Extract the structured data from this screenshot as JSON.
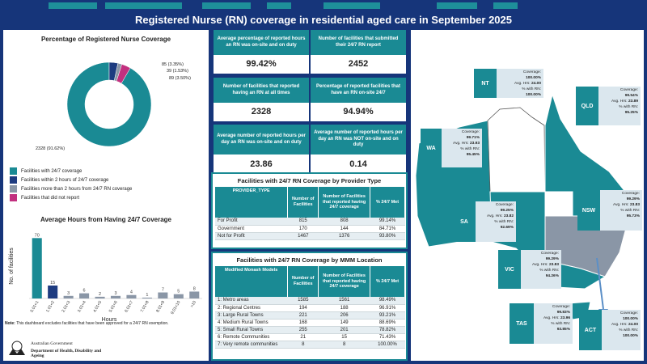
{
  "title": "Registered Nurse (RN) coverage in residential aged care in September 2025",
  "donut": {
    "title": "Percentage of Registered Nurse Coverage",
    "label_main": "2328 (91.62%)",
    "label_a": "85 (3.35%)",
    "label_b": "39 (1.53%)",
    "label_c": "89 (3.50%)",
    "legend": [
      {
        "label": "Facilities with 24/7 coverage",
        "color": "#1a8a94"
      },
      {
        "label": "Facilities within 2 hours of 24/7 coverage",
        "color": "#1d3b80"
      },
      {
        "label": "Facilities more than 2 hours from 24/7 RN coverage",
        "color": "#8a96a6"
      },
      {
        "label": "Facilities that did not report",
        "color": "#c2307f"
      }
    ]
  },
  "chart_data": {
    "type": "bar",
    "title": "Average Hours from Having 24/7 Coverage",
    "xlabel": "Hours",
    "ylabel": "No. of facilities",
    "categories": [
      "0.01<1",
      "1.01<2",
      "2.01<3",
      "3.01<4",
      "4.01<5",
      "5.01<6",
      "6.01<7",
      "7.01<8",
      "8.01<9",
      "9.01<10",
      ">10"
    ],
    "values": [
      70,
      15,
      3,
      6,
      2,
      3,
      4,
      1,
      7,
      5,
      8
    ],
    "ylim": [
      0,
      75
    ],
    "colors": [
      "#1a8a94",
      "#1d3b80",
      "#8a96a6",
      "#8a96a6",
      "#8a96a6",
      "#8a96a6",
      "#8a96a6",
      "#8a96a6",
      "#8a96a6",
      "#8a96a6",
      "#8a96a6"
    ]
  },
  "note": {
    "bold": "Note:",
    "text": " This dashboard excludes facilities that have been approved for a 24/7 RN exemption."
  },
  "gov": {
    "line1": "Australian Government",
    "line2": "Department of Health, Disability and Ageing"
  },
  "kpis": [
    {
      "label": "Average percentage of reported hours an RN was on-site and on duty",
      "value": "99.42%"
    },
    {
      "label": "Number of facilities that submitted their 24/7 RN report",
      "value": "2452"
    },
    {
      "label": "Number of facilities that reported having an RN at all times",
      "value": "2328"
    },
    {
      "label": "Percentage of reported facilities that have an RN on-site 24/7",
      "value": "94.94%"
    },
    {
      "label": "Average number of reported hours per day an RN was on-site and on duty",
      "value": "23.86"
    },
    {
      "label": "Average number of reported hours per day an RN was NOT on-site and on duty",
      "value": "0.14"
    }
  ],
  "provider_table": {
    "title": "Facilities with 24/7 RN Coverage by Provider Type",
    "headers": [
      "PROVIDER_TYPE",
      "Number of Facilities",
      "Number of Facilities that reported having 24/7 coverage",
      "% 24/7 Met"
    ],
    "rows": [
      [
        "For Profit",
        "815",
        "808",
        "99.14%"
      ],
      [
        "Government",
        "170",
        "144",
        "84.71%"
      ],
      [
        "Not for Profit",
        "1467",
        "1376",
        "93.80%"
      ]
    ]
  },
  "mmm_table": {
    "title": "Facilities with 24/7 RN Coverage by MMM Location",
    "headers": [
      "Modified Monash Models",
      "Number of Facilities",
      "Number of Facilities that reported having 24/7 coverage",
      "% 24/7 Met"
    ],
    "rows": [
      [
        "1: Metro areas",
        "1585",
        "1561",
        "98.49%"
      ],
      [
        "2: Regional Centres",
        "194",
        "188",
        "96.91%"
      ],
      [
        "3: Large Rural Towns",
        "221",
        "206",
        "93.21%"
      ],
      [
        "4: Medium Rural Towns",
        "168",
        "149",
        "88.69%"
      ],
      [
        "5: Small Rural Towns",
        "255",
        "201",
        "78.82%"
      ],
      [
        "6: Remote Communities",
        "21",
        "15",
        "71.43%"
      ],
      [
        "7: Very remote communities",
        "8",
        "8",
        "100.00%"
      ]
    ]
  },
  "map_labels": {
    "coverage": "Coverage:",
    "avg": "Avg. Hrs:",
    "pct": "% with RN:"
  },
  "states": {
    "NT": {
      "name": "NT",
      "coverage": "100.00%",
      "avg": "24.00",
      "pct": "100.00%"
    },
    "QLD": {
      "name": "QLD",
      "coverage": "99.54%",
      "avg": "23.89",
      "pct": "95.25%"
    },
    "WA": {
      "name": "WA",
      "coverage": "99.71%",
      "avg": "23.93",
      "pct": "95.45%"
    },
    "SA": {
      "name": "SA",
      "coverage": "99.25%",
      "avg": "23.82",
      "pct": "92.69%"
    },
    "NSW": {
      "name": "NSW",
      "coverage": "99.29%",
      "avg": "23.83",
      "pct": "95.73%"
    },
    "VIC": {
      "name": "VIC",
      "coverage": "99.29%",
      "avg": "23.83",
      "pct": "94.26%"
    },
    "TAS": {
      "name": "TAS",
      "coverage": "99.83%",
      "avg": "23.96",
      "pct": "93.85%"
    },
    "ACT": {
      "name": "ACT",
      "coverage": "100.00%",
      "avg": "24.00",
      "pct": "100.00%"
    }
  }
}
